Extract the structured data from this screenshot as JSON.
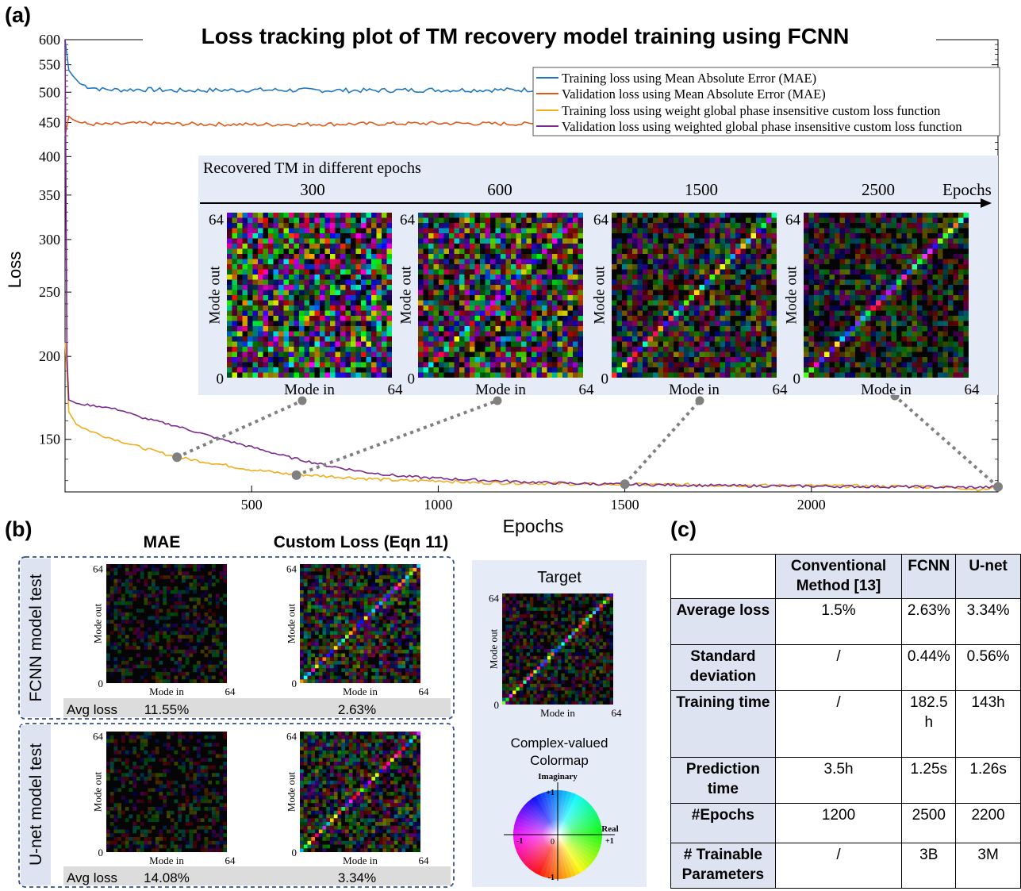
{
  "panels": {
    "a": "(a)",
    "b": "(b)",
    "c": "(c)"
  },
  "colors": {
    "training_mae": "#1f77c4",
    "validation_mae": "#e05a1c",
    "training_custom": "#f2ad1d",
    "validation_custom": "#7a2a8c",
    "inset_bg": "#e6ecf7",
    "connector": "#808080"
  },
  "chart_data": {
    "type": "line",
    "title": "Loss tracking plot of TM recovery model training using FCNN",
    "xlabel": "Epochs",
    "ylabel": "Loss",
    "xlim": [
      0,
      2500
    ],
    "ylim": [
      125,
      600
    ],
    "yscale": "log",
    "xticks": [
      500,
      1000,
      1500,
      2000
    ],
    "yticks": [
      150,
      200,
      250,
      300,
      350,
      400,
      450,
      500,
      550,
      600
    ],
    "legend_position": "top-right",
    "series": [
      {
        "name": "Training loss using Mean Absolute Error (MAE)",
        "x": [
          0,
          10,
          20,
          40,
          60,
          100,
          150,
          200,
          300,
          500,
          800,
          1000,
          1200,
          1300
        ],
        "y": [
          600,
          540,
          530,
          515,
          510,
          505,
          504,
          505,
          503,
          504,
          503,
          504,
          504,
          505
        ]
      },
      {
        "name": "Validation loss using Mean Absolute Error (MAE)",
        "x": [
          0,
          10,
          20,
          40,
          60,
          100,
          150,
          200,
          300,
          500,
          800,
          1000,
          1200,
          1300
        ],
        "y": [
          430,
          460,
          455,
          450,
          448,
          447,
          448,
          449,
          448,
          447,
          448,
          449,
          448,
          448
        ]
      },
      {
        "name": "Training loss using weight global phase insensitive custom loss function",
        "x": [
          0,
          5,
          10,
          30,
          60,
          100,
          150,
          200,
          300,
          400,
          500,
          600,
          700,
          800,
          900,
          1000,
          1100,
          1200,
          1300,
          1400,
          1500,
          1600,
          1700,
          1800,
          1900,
          2000,
          2100,
          2200,
          2300,
          2400,
          2460,
          2500
        ],
        "y": [
          210,
          190,
          165,
          158,
          155,
          152,
          149,
          146,
          141,
          138,
          135,
          133,
          132,
          131,
          130,
          130,
          129,
          129,
          128.7,
          128.4,
          128.3,
          128.2,
          128.1,
          127.9,
          127.8,
          127.7,
          127.6,
          127.4,
          127.3,
          126.8,
          126,
          127.2
        ]
      },
      {
        "name": "Validation loss using weighted global phase insensitive custom loss function",
        "x": [
          0,
          5,
          10,
          30,
          60,
          100,
          150,
          200,
          300,
          400,
          500,
          600,
          700,
          800,
          900,
          1000,
          1100,
          1200,
          1300,
          1400,
          1500,
          1600,
          1700,
          1800,
          1900,
          2000,
          2100,
          2200,
          2300,
          2400,
          2460,
          2500
        ],
        "y": [
          600,
          200,
          172,
          170,
          169,
          168,
          166,
          162,
          157,
          151,
          146,
          141,
          137,
          134,
          132,
          131,
          130.3,
          129.6,
          129,
          128.6,
          128.3,
          128.1,
          127.9,
          127.7,
          127.6,
          127.5,
          127.4,
          127.3,
          127.2,
          127,
          127,
          127.2
        ]
      }
    ],
    "markers": [
      {
        "x": 300,
        "y": 141
      },
      {
        "x": 620,
        "y": 132.5
      },
      {
        "x": 1500,
        "y": 128.4
      },
      {
        "x": 2500,
        "y": 127.2
      }
    ]
  },
  "inset": {
    "title": "Recovered TM in different epochs",
    "arrow_label": "Epochs",
    "epochs": [
      "300",
      "600",
      "1500",
      "2500"
    ],
    "axis_max": "64",
    "axis_min": "0",
    "xlabel": "Mode in",
    "ylabel": "Mode out"
  },
  "panel_b": {
    "col_mae": "MAE",
    "col_custom": "Custom Loss (Eqn 11)",
    "rows": [
      {
        "label": "FCNN model test",
        "avg_label": "Avg loss",
        "mae_value": "11.55%",
        "custom_value": "2.63%"
      },
      {
        "label": "U-net model test",
        "avg_label": "Avg loss",
        "mae_value": "14.08%",
        "custom_value": "3.34%"
      }
    ],
    "axis_max": "64",
    "axis_min": "0",
    "xlabel": "Mode in",
    "ylabel": "Mode out",
    "target_title": "Target",
    "colormap_title_line1": "Complex-valued",
    "colormap_title_line2": "Colormap",
    "colormap_imag": "Imaginary",
    "colormap_real": "Real",
    "colormap_pos1": "+1",
    "colormap_neg1": "-1",
    "colormap_zero": "0"
  },
  "table": {
    "headers": [
      "",
      "Conventional Method [13]",
      "FCNN",
      "U-net"
    ],
    "rows": [
      [
        "Average loss",
        "1.5%",
        "2.63%",
        "3.34%"
      ],
      [
        "Standard deviation",
        "/",
        "0.44%",
        "0.56%"
      ],
      [
        "Training time",
        "/",
        "182.5 h",
        "143h"
      ],
      [
        "Prediction time",
        "3.5h",
        "1.25s",
        "1.26s"
      ],
      [
        "#Epochs",
        "1200",
        "2500",
        "2200"
      ],
      [
        "# Trainable Parameters",
        "/",
        "3B",
        "3M"
      ]
    ]
  }
}
